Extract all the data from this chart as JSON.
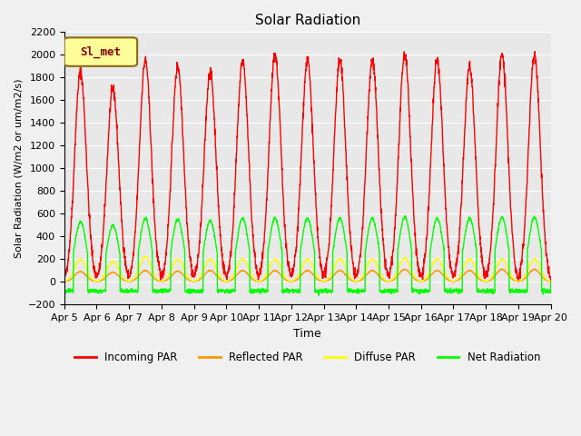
{
  "title": "Solar Radiation",
  "xlabel": "Time",
  "ylabel": "Solar Radiation (W/m2 or um/m2/s)",
  "ylim": [
    -200,
    2200
  ],
  "yticks": [
    -200,
    0,
    200,
    400,
    600,
    800,
    1000,
    1200,
    1400,
    1600,
    1800,
    2000,
    2200
  ],
  "date_labels": [
    "Apr 5",
    "Apr 6",
    "Apr 7",
    "Apr 8",
    "Apr 9",
    "Apr 10",
    "Apr 11",
    "Apr 12",
    "Apr 13",
    "Apr 14",
    "Apr 15",
    "Apr 16",
    "Apr 17",
    "Apr 18",
    "Apr 19",
    "Apr 20"
  ],
  "xtick_positions": [
    0,
    1,
    2,
    3,
    4,
    5,
    6,
    7,
    8,
    9,
    10,
    11,
    12,
    13,
    14,
    15
  ],
  "legend_label": "Sl_met",
  "legend_bg": "#ffff99",
  "legend_border": "#8b6914",
  "incoming_color": "#ff0000",
  "reflected_color": "#ff9900",
  "diffuse_color": "#ffff00",
  "net_color": "#00ff00",
  "incoming_label": "Incoming PAR",
  "reflected_label": "Reflected PAR",
  "diffuse_label": "Diffuse PAR",
  "net_label": "Net Radiation",
  "background_color": "#f0f0f0",
  "plot_bg": "#e8e8e8",
  "grid_color": "#ffffff",
  "num_days": 15,
  "incoming_peaks": [
    1850,
    1700,
    1950,
    1900,
    1850,
    1950,
    2000,
    1950,
    1950,
    1950,
    2000,
    1950,
    1900,
    2000,
    2000
  ],
  "reflected_peaks": [
    90,
    85,
    100,
    95,
    100,
    100,
    100,
    100,
    100,
    100,
    110,
    100,
    100,
    110,
    110
  ],
  "diffuse_peaks": [
    200,
    180,
    220,
    200,
    200,
    200,
    200,
    200,
    200,
    200,
    210,
    200,
    200,
    200,
    200
  ],
  "net_peaks": [
    530,
    500,
    560,
    550,
    540,
    560,
    560,
    560,
    560,
    560,
    570,
    560,
    560,
    570,
    570
  ]
}
